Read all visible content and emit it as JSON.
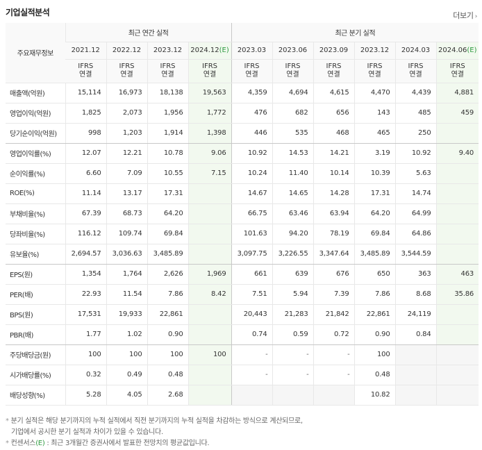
{
  "header": {
    "title": "기업실적분석",
    "more_label": "더보기",
    "more_arrow": "›"
  },
  "table": {
    "corner_label": "주요재무정보",
    "groups": {
      "annual": "최근 연간 실적",
      "quarterly": "최근 분기 실적"
    },
    "periods": [
      "2021.12",
      "2022.12",
      "2023.12",
      "2024.12",
      "2023.03",
      "2023.06",
      "2023.09",
      "2023.12",
      "2024.03",
      "2024.06"
    ],
    "estimate_tag": "(E)",
    "estimate_columns": [
      3,
      9
    ],
    "ifrs_line1": "IFRS",
    "ifrs_line2": "연결",
    "rows": [
      {
        "label": "매출액(억원)",
        "values": [
          "15,114",
          "16,973",
          "18,138",
          "19,563",
          "4,359",
          "4,694",
          "4,615",
          "4,470",
          "4,439",
          "4,881"
        ]
      },
      {
        "label": "영업이익(억원)",
        "values": [
          "1,825",
          "2,073",
          "1,956",
          "1,772",
          "476",
          "682",
          "656",
          "143",
          "485",
          "459"
        ]
      },
      {
        "label": "당기순이익(억원)",
        "values": [
          "998",
          "1,203",
          "1,914",
          "1,398",
          "446",
          "535",
          "468",
          "465",
          "250",
          ""
        ]
      },
      {
        "label": "영업이익률(%)",
        "values": [
          "12.07",
          "12.21",
          "10.78",
          "9.06",
          "10.92",
          "14.53",
          "14.21",
          "3.19",
          "10.92",
          "9.40"
        ]
      },
      {
        "label": "순이익률(%)",
        "values": [
          "6.60",
          "7.09",
          "10.55",
          "7.15",
          "10.24",
          "11.40",
          "10.14",
          "10.39",
          "5.63",
          ""
        ]
      },
      {
        "label": "ROE(%)",
        "values": [
          "11.14",
          "13.17",
          "17.31",
          "",
          "14.67",
          "14.65",
          "14.28",
          "17.31",
          "14.74",
          ""
        ]
      },
      {
        "label": "부채비율(%)",
        "values": [
          "67.39",
          "68.73",
          "64.20",
          "",
          "66.75",
          "63.46",
          "63.94",
          "64.20",
          "64.99",
          ""
        ]
      },
      {
        "label": "당좌비율(%)",
        "values": [
          "116.12",
          "109.74",
          "69.84",
          "",
          "101.63",
          "94.20",
          "78.19",
          "69.84",
          "64.86",
          ""
        ]
      },
      {
        "label": "유보율(%)",
        "values": [
          "2,694.57",
          "3,036.63",
          "3,485.89",
          "",
          "3,097.75",
          "3,226.55",
          "3,347.64",
          "3,485.89",
          "3,544.59",
          ""
        ]
      },
      {
        "label": "EPS(원)",
        "values": [
          "1,354",
          "1,764",
          "2,626",
          "1,969",
          "661",
          "639",
          "676",
          "650",
          "363",
          "463"
        ]
      },
      {
        "label": "PER(배)",
        "values": [
          "22.93",
          "11.54",
          "7.86",
          "8.42",
          "7.51",
          "5.94",
          "7.39",
          "7.86",
          "8.68",
          "35.86"
        ]
      },
      {
        "label": "BPS(원)",
        "values": [
          "17,531",
          "19,933",
          "22,861",
          "",
          "20,443",
          "21,283",
          "21,842",
          "22,861",
          "24,119",
          ""
        ]
      },
      {
        "label": "PBR(배)",
        "values": [
          "1.77",
          "1.02",
          "0.90",
          "",
          "0.74",
          "0.59",
          "0.72",
          "0.90",
          "0.84",
          ""
        ]
      },
      {
        "label": "주당배당금(원)",
        "values": [
          "100",
          "100",
          "100",
          "100",
          "-",
          "-",
          "-",
          "100",
          "",
          ""
        ]
      },
      {
        "label": "시가배당률(%)",
        "values": [
          "0.32",
          "0.49",
          "0.48",
          "",
          "-",
          "-",
          "-",
          "0.48",
          "",
          ""
        ]
      },
      {
        "label": "배당성향(%)",
        "values": [
          "5.28",
          "4.05",
          "2.68",
          "",
          "",
          "",
          "",
          "10.82",
          "",
          ""
        ]
      }
    ]
  },
  "notes": {
    "marker": "*",
    "line1": "분기 실적은 해당 분기까지의 누적 실적에서 직전 분기까지의 누적 실적을 차감하는 방식으로 계산되므로,",
    "line2": "기업에서 공시한 분기 실적과 차이가 있을 수 있습니다.",
    "line3_prefix": "컨센서스",
    "line3_tag": "(E)",
    "line3_rest": ": 최근 3개월간 증권사에서 발표한 전망치의 평균값입니다."
  }
}
